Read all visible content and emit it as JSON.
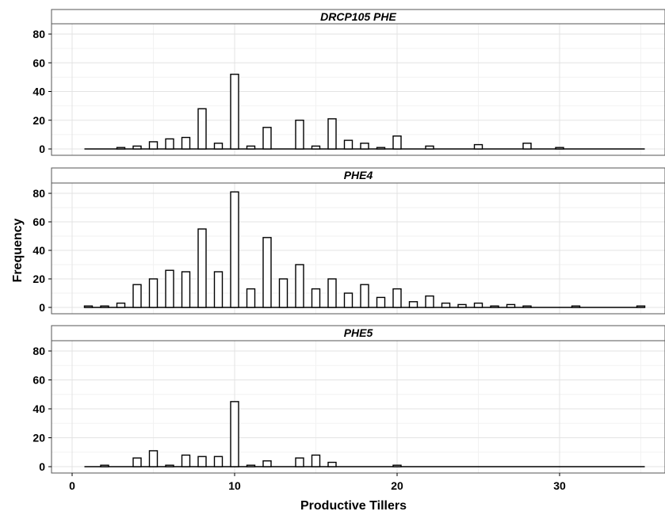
{
  "chart_data": {
    "type": "bar",
    "layout": "faceted histogram, 3 panels stacked vertically, shared x axis",
    "xlabel": "Productive Tillers",
    "ylabel": "Frequency",
    "xlim": [
      -0.5,
      36
    ],
    "ylim": [
      -4,
      84
    ],
    "x_ticks": [
      0,
      10,
      20,
      30
    ],
    "y_ticks": [
      0,
      20,
      40,
      60,
      80
    ],
    "grid": "on",
    "bar_fill": "#ffffff",
    "bar_outline": "#000000",
    "x": [
      1,
      2,
      3,
      4,
      5,
      6,
      7,
      8,
      9,
      10,
      11,
      12,
      13,
      14,
      15,
      16,
      17,
      18,
      19,
      20,
      21,
      22,
      23,
      24,
      25,
      26,
      27,
      28,
      29,
      30,
      31,
      32,
      33,
      34,
      35
    ],
    "panels": [
      {
        "title": "DRCP105 PHE",
        "values": [
          0,
          0,
          1,
          2,
          5,
          7,
          8,
          28,
          4,
          52,
          2,
          15,
          0,
          20,
          2,
          21,
          6,
          4,
          1,
          9,
          0,
          2,
          0,
          0,
          3,
          0,
          0,
          4,
          0,
          1,
          0,
          0,
          0,
          0,
          0
        ]
      },
      {
        "title": "PHE4",
        "values": [
          1,
          1,
          3,
          16,
          20,
          26,
          25,
          55,
          25,
          81,
          13,
          49,
          20,
          30,
          13,
          20,
          10,
          16,
          7,
          13,
          4,
          8,
          3,
          2,
          3,
          1,
          2,
          1,
          0,
          0,
          1,
          0,
          0,
          0,
          1
        ]
      },
      {
        "title": "PHE5",
        "values": [
          0,
          1,
          0,
          6,
          11,
          1,
          8,
          7,
          7,
          45,
          1,
          4,
          0,
          6,
          8,
          3,
          0,
          0,
          0,
          1,
          0,
          0,
          0,
          0,
          0,
          0,
          0,
          0,
          0,
          0,
          0,
          0,
          0,
          0,
          0
        ]
      }
    ]
  }
}
